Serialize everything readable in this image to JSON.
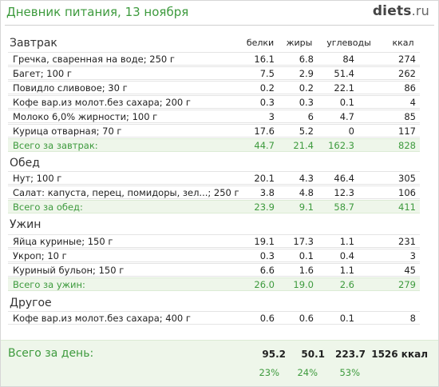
{
  "header": {
    "title": "Дневник питания, 13 ноября",
    "logo_main": "diets",
    "logo_suffix": ".ru"
  },
  "columns": {
    "protein": "белки",
    "fat": "жиры",
    "carbs": "углеводы",
    "kcal": "ккал"
  },
  "sections": [
    {
      "title": "Завтрак",
      "items": [
        {
          "name": "Гречка, сваренная на воде; 250 г",
          "protein": "16.1",
          "fat": "6.8",
          "carbs": "84",
          "kcal": "274"
        },
        {
          "name": "Багет; 100 г",
          "protein": "7.5",
          "fat": "2.9",
          "carbs": "51.4",
          "kcal": "262"
        },
        {
          "name": "Повидло сливовое; 30 г",
          "protein": "0.2",
          "fat": "0.2",
          "carbs": "22.1",
          "kcal": "86"
        },
        {
          "name": "Кофе вар.из молот.без сахара; 200 г",
          "protein": "0.3",
          "fat": "0.3",
          "carbs": "0.1",
          "kcal": "4"
        },
        {
          "name": "Молоко 6,0% жирности; 100 г",
          "protein": "3",
          "fat": "6",
          "carbs": "4.7",
          "kcal": "85"
        },
        {
          "name": "Курица отварная; 70 г",
          "protein": "17.6",
          "fat": "5.2",
          "carbs": "0",
          "kcal": "117"
        }
      ],
      "total": {
        "name": "Всего за завтрак:",
        "protein": "44.7",
        "fat": "21.4",
        "carbs": "162.3",
        "kcal": "828"
      }
    },
    {
      "title": "Обед",
      "items": [
        {
          "name": "Нут; 100 г",
          "protein": "20.1",
          "fat": "4.3",
          "carbs": "46.4",
          "kcal": "305"
        },
        {
          "name": "Салат: капуста, перец, помидоры, зел...; 250 г",
          "protein": "3.8",
          "fat": "4.8",
          "carbs": "12.3",
          "kcal": "106"
        }
      ],
      "total": {
        "name": "Всего за обед:",
        "protein": "23.9",
        "fat": "9.1",
        "carbs": "58.7",
        "kcal": "411"
      }
    },
    {
      "title": "Ужин",
      "items": [
        {
          "name": "Яйца куриные; 150 г",
          "protein": "19.1",
          "fat": "17.3",
          "carbs": "1.1",
          "kcal": "231"
        },
        {
          "name": "Укроп; 10 г",
          "protein": "0.3",
          "fat": "0.1",
          "carbs": "0.4",
          "kcal": "3"
        },
        {
          "name": "Куриный бульон; 150 г",
          "protein": "6.6",
          "fat": "1.6",
          "carbs": "1.1",
          "kcal": "45"
        }
      ],
      "total": {
        "name": "Всего за ужин:",
        "protein": "26.0",
        "fat": "19.0",
        "carbs": "2.6",
        "kcal": "279"
      }
    },
    {
      "title": "Другое",
      "items": [
        {
          "name": "Кофе вар.из молот.без сахара; 400 г",
          "protein": "0.6",
          "fat": "0.6",
          "carbs": "0.1",
          "kcal": "8"
        }
      ]
    }
  ],
  "day_total": {
    "label": "Всего за день:",
    "protein": "95.2",
    "fat": "50.1",
    "carbs": "223.7",
    "kcal": "1526 ккал",
    "protein_pct": "23%",
    "fat_pct": "24%",
    "carbs_pct": "53%"
  },
  "colors": {
    "accent_green": "#3d9a3d",
    "total_bg": "#eef6ea"
  }
}
